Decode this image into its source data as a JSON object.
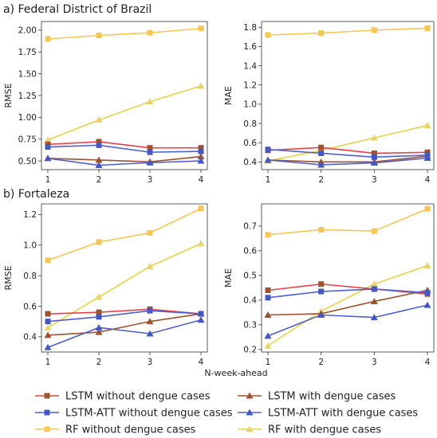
{
  "panel_titles": {
    "federal": "a) Federal District of Brazil",
    "fortaleza": "b) Fortaleza"
  },
  "x_axis_label": "N-week-ahead",
  "colors": {
    "lstm": "#e8404a",
    "lstm_att": "#4f5fcf",
    "rf": "#f7c552",
    "lstm_marker": "#a0522d",
    "lstm_att_marker": "#4458c4",
    "rf_marker": "#ebd36a",
    "rf_dengue": "#e3d445"
  },
  "legend": [
    {
      "label": "LSTM without dengue cases",
      "series": "lstm_wo"
    },
    {
      "label": "LSTM with dengue cases",
      "series": "lstm_w"
    },
    {
      "label": "LSTM-ATT without dengue cases",
      "series": "att_wo"
    },
    {
      "label": "LSTM-ATT with dengue cases",
      "series": "att_w"
    },
    {
      "label": "RF without dengue cases",
      "series": "rf_wo"
    },
    {
      "label": "RF with dengue cases",
      "series": "rf_w"
    }
  ],
  "chart_data": [
    {
      "type": "line",
      "panel": "federal_rmse",
      "ylabel": "RMSE",
      "xlabel": "",
      "x": [
        1,
        2,
        3,
        4
      ],
      "ylim": [
        0.4,
        2.1
      ],
      "yticks": [
        "0.50",
        "0.75",
        "1.00",
        "1.25",
        "1.50",
        "1.75",
        "2.00"
      ],
      "series": [
        {
          "name": "LSTM without dengue cases",
          "key": "lstm_wo",
          "values": [
            0.69,
            0.72,
            0.65,
            0.65
          ]
        },
        {
          "name": "LSTM with dengue cases",
          "key": "lstm_w",
          "values": [
            0.53,
            0.51,
            0.49,
            0.55
          ]
        },
        {
          "name": "LSTM-ATT without dengue cases",
          "key": "att_wo",
          "values": [
            0.66,
            0.68,
            0.6,
            0.61
          ]
        },
        {
          "name": "LSTM-ATT with dengue cases",
          "key": "att_w",
          "values": [
            0.53,
            0.45,
            0.48,
            0.5
          ]
        },
        {
          "name": "RF without dengue cases",
          "key": "rf_wo",
          "values": [
            1.9,
            1.94,
            1.97,
            2.02
          ]
        },
        {
          "name": "RF with dengue cases",
          "key": "rf_w",
          "values": [
            0.74,
            0.97,
            1.18,
            1.36
          ]
        }
      ]
    },
    {
      "type": "line",
      "panel": "federal_mae",
      "ylabel": "MAE",
      "xlabel": "",
      "x": [
        1,
        2,
        3,
        4
      ],
      "ylim": [
        0.32,
        1.86
      ],
      "yticks": [
        "0.4",
        "0.6",
        "0.8",
        "1.0",
        "1.2",
        "1.4",
        "1.6",
        "1.8"
      ],
      "series": [
        {
          "name": "LSTM without dengue cases",
          "key": "lstm_wo",
          "values": [
            0.52,
            0.55,
            0.49,
            0.5
          ]
        },
        {
          "name": "LSTM with dengue cases",
          "key": "lstm_w",
          "values": [
            0.42,
            0.4,
            0.4,
            0.46
          ]
        },
        {
          "name": "LSTM-ATT without dengue cases",
          "key": "att_wo",
          "values": [
            0.53,
            0.49,
            0.45,
            0.47
          ]
        },
        {
          "name": "LSTM-ATT with dengue cases",
          "key": "att_w",
          "values": [
            0.42,
            0.37,
            0.39,
            0.44
          ]
        },
        {
          "name": "RF without dengue cases",
          "key": "rf_wo",
          "values": [
            1.72,
            1.74,
            1.77,
            1.79
          ]
        },
        {
          "name": "RF with dengue cases",
          "key": "rf_w",
          "values": [
            0.41,
            0.52,
            0.65,
            0.78
          ]
        }
      ]
    },
    {
      "type": "line",
      "panel": "fortaleza_rmse",
      "ylabel": "RMSE",
      "xlabel": "N-week-ahead",
      "x": [
        1,
        2,
        3,
        4
      ],
      "ylim": [
        0.3,
        1.27
      ],
      "yticks": [
        "0.4",
        "0.6",
        "0.8",
        "1.0",
        "1.2"
      ],
      "series": [
        {
          "name": "LSTM without dengue cases",
          "key": "lstm_wo",
          "values": [
            0.55,
            0.56,
            0.58,
            0.55
          ]
        },
        {
          "name": "LSTM with dengue cases",
          "key": "lstm_w",
          "values": [
            0.41,
            0.43,
            0.5,
            0.55
          ]
        },
        {
          "name": "LSTM-ATT without dengue cases",
          "key": "att_wo",
          "values": [
            0.5,
            0.53,
            0.57,
            0.55
          ]
        },
        {
          "name": "LSTM-ATT with dengue cases",
          "key": "att_w",
          "values": [
            0.33,
            0.46,
            0.42,
            0.51
          ]
        },
        {
          "name": "RF without dengue cases",
          "key": "rf_wo",
          "values": [
            0.9,
            1.02,
            1.08,
            1.24
          ]
        },
        {
          "name": "RF with dengue cases",
          "key": "rf_w",
          "values": [
            0.46,
            0.66,
            0.86,
            1.01
          ]
        }
      ]
    },
    {
      "type": "line",
      "panel": "fortaleza_mae",
      "ylabel": "MAE",
      "xlabel": "",
      "x": [
        1,
        2,
        3,
        4
      ],
      "ylim": [
        0.19,
        0.79
      ],
      "yticks": [
        "0.2",
        "0.3",
        "0.4",
        "0.5",
        "0.6",
        "0.7"
      ],
      "series": [
        {
          "name": "LSTM without dengue cases",
          "key": "lstm_wo",
          "values": [
            0.44,
            0.465,
            0.445,
            0.425
          ]
        },
        {
          "name": "LSTM with dengue cases",
          "key": "lstm_w",
          "values": [
            0.34,
            0.345,
            0.395,
            0.44
          ]
        },
        {
          "name": "LSTM-ATT without dengue cases",
          "key": "att_wo",
          "values": [
            0.41,
            0.435,
            0.445,
            0.43
          ]
        },
        {
          "name": "LSTM-ATT with dengue cases",
          "key": "att_w",
          "values": [
            0.255,
            0.34,
            0.33,
            0.38
          ]
        },
        {
          "name": "RF without dengue cases",
          "key": "rf_wo",
          "values": [
            0.665,
            0.685,
            0.68,
            0.77
          ]
        },
        {
          "name": "RF with dengue cases",
          "key": "rf_w",
          "values": [
            0.215,
            0.355,
            0.465,
            0.54
          ]
        }
      ]
    }
  ]
}
